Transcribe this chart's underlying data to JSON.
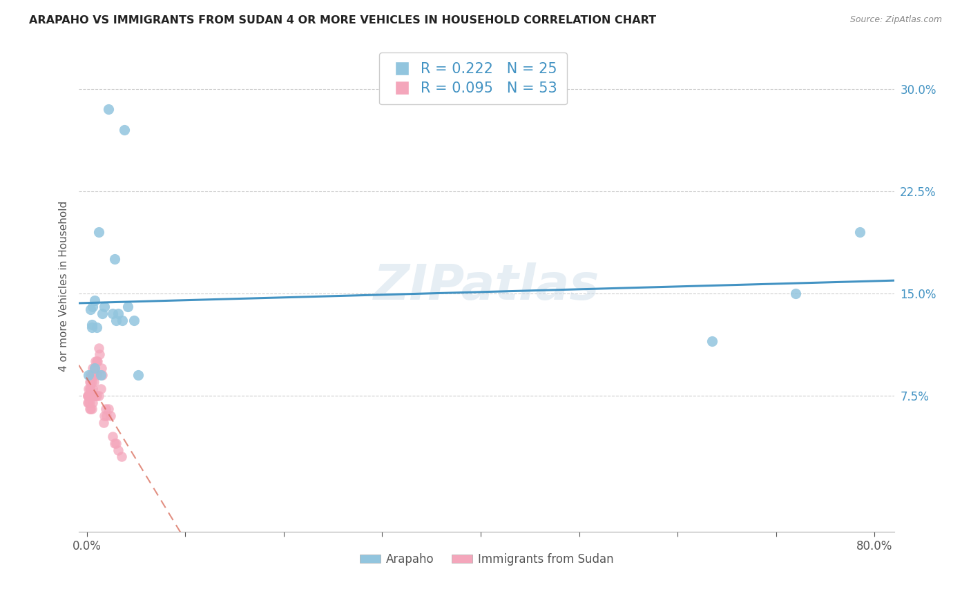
{
  "title": "ARAPAHO VS IMMIGRANTS FROM SUDAN 4 OR MORE VEHICLES IN HOUSEHOLD CORRELATION CHART",
  "source": "Source: ZipAtlas.com",
  "ylabel": "4 or more Vehicles in Household",
  "ytick_values": [
    0.075,
    0.15,
    0.225,
    0.3
  ],
  "xlim": [
    -0.008,
    0.82
  ],
  "ylim": [
    -0.025,
    0.335
  ],
  "xtick_positions": [
    0.0,
    0.1,
    0.2,
    0.3,
    0.4,
    0.5,
    0.6,
    0.7,
    0.8
  ],
  "legend_label1": "Arapaho",
  "legend_label2": "Immigrants from Sudan",
  "legend_R1": "R = 0.222",
  "legend_N1": "N = 25",
  "legend_R2": "R = 0.095",
  "legend_N2": "N = 53",
  "color_blue": "#92c5de",
  "color_pink": "#f4a6bb",
  "color_blue_line": "#4393c3",
  "color_pink_line": "#d6604d",
  "watermark": "ZIPatlas",
  "arapaho_x": [
    0.022,
    0.038,
    0.012,
    0.028,
    0.008,
    0.006,
    0.042,
    0.016,
    0.032,
    0.048,
    0.005,
    0.01,
    0.018,
    0.026,
    0.004,
    0.635,
    0.72,
    0.785,
    0.005,
    0.008,
    0.014,
    0.03,
    0.036,
    0.052,
    0.002
  ],
  "arapaho_y": [
    0.285,
    0.27,
    0.195,
    0.175,
    0.145,
    0.14,
    0.14,
    0.135,
    0.135,
    0.13,
    0.127,
    0.125,
    0.14,
    0.135,
    0.138,
    0.115,
    0.15,
    0.195,
    0.125,
    0.095,
    0.09,
    0.13,
    0.13,
    0.09,
    0.09
  ],
  "sudan_x": [
    0.001,
    0.001,
    0.001,
    0.002,
    0.002,
    0.002,
    0.002,
    0.003,
    0.003,
    0.003,
    0.003,
    0.003,
    0.004,
    0.004,
    0.004,
    0.004,
    0.004,
    0.005,
    0.005,
    0.005,
    0.005,
    0.006,
    0.006,
    0.006,
    0.006,
    0.007,
    0.007,
    0.007,
    0.008,
    0.008,
    0.009,
    0.009,
    0.01,
    0.01,
    0.01,
    0.011,
    0.012,
    0.012,
    0.013,
    0.014,
    0.015,
    0.016,
    0.017,
    0.018,
    0.019,
    0.02,
    0.022,
    0.024,
    0.026,
    0.028,
    0.03,
    0.032,
    0.035
  ],
  "sudan_y": [
    0.075,
    0.075,
    0.07,
    0.08,
    0.075,
    0.075,
    0.07,
    0.085,
    0.08,
    0.075,
    0.07,
    0.065,
    0.09,
    0.085,
    0.08,
    0.075,
    0.065,
    0.09,
    0.085,
    0.075,
    0.065,
    0.095,
    0.09,
    0.08,
    0.07,
    0.09,
    0.085,
    0.075,
    0.095,
    0.075,
    0.1,
    0.075,
    0.1,
    0.09,
    0.075,
    0.1,
    0.11,
    0.075,
    0.105,
    0.08,
    0.095,
    0.09,
    0.055,
    0.06,
    0.065,
    0.06,
    0.065,
    0.06,
    0.045,
    0.04,
    0.04,
    0.035,
    0.03
  ]
}
